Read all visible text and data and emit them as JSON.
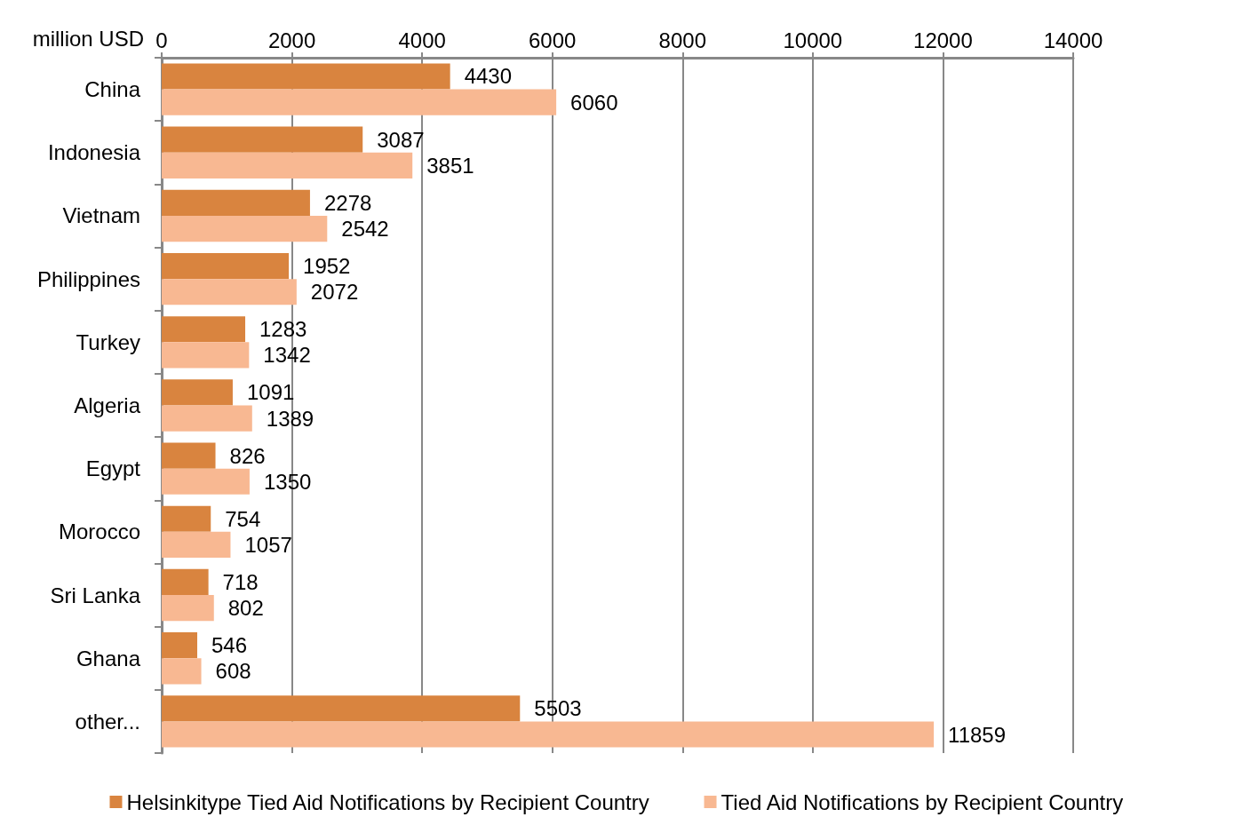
{
  "chart_data": {
    "type": "bar",
    "orientation": "horizontal",
    "xlabel": "million USD",
    "categories": [
      "China",
      "Indonesia",
      "Vietnam",
      "Philippines",
      "Turkey",
      "Algeria",
      "Egypt",
      "Morocco",
      "Sri Lanka",
      "Ghana",
      "other..."
    ],
    "series": [
      {
        "name": "Helsinkitype Tied Aid Notifications by Recipient Country",
        "color": "#d9843f",
        "values": [
          4430,
          3087,
          2278,
          1952,
          1283,
          1091,
          826,
          754,
          718,
          546,
          5503
        ]
      },
      {
        "name": "Tied Aid Notifications by Recipient Country",
        "color": "#f8b892",
        "values": [
          6060,
          3851,
          2542,
          2072,
          1342,
          1389,
          1350,
          1057,
          802,
          608,
          11859
        ]
      }
    ],
    "xlim": [
      0,
      14000
    ],
    "xticks": [
      0,
      2000,
      4000,
      6000,
      8000,
      10000,
      12000,
      14000
    ],
    "grid": "x",
    "legend": "bottom",
    "data_labels": true
  }
}
